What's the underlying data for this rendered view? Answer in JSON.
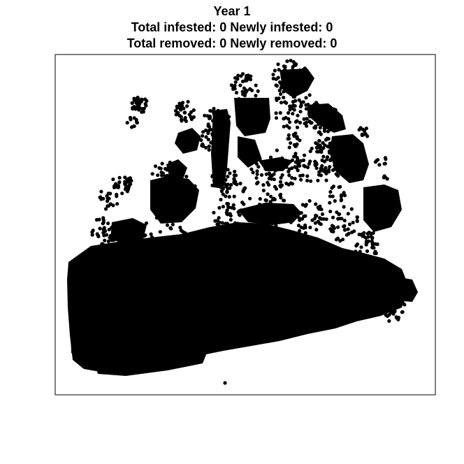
{
  "title": {
    "line1": "Year 1",
    "line2": "Total infested: 0 Newly infested: 0",
    "line3": "Total removed: 0 Newly removed: 0"
  },
  "colors": {
    "points": "#000000",
    "frame": "#000000",
    "background": "#ffffff"
  },
  "chart_data": {
    "type": "scatter",
    "title": "Year 1",
    "subtitle": [
      "Total infested: 0 Newly infested: 0",
      "Total removed: 0 Newly removed: 0"
    ],
    "xlabel": "",
    "ylabel": "",
    "axes_shown": false,
    "grid": false,
    "legend": "none",
    "series": [
      {
        "values_described": "dense point cloud of locations, no infested or removed points in Year 1"
      }
    ]
  }
}
